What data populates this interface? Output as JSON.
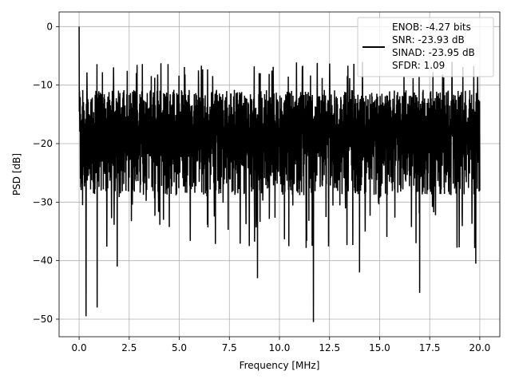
{
  "chart_data": {
    "type": "line",
    "xlabel": "Frequency [MHz]",
    "ylabel": "PSD [dB]",
    "xlim": [
      -1.0,
      21.0
    ],
    "ylim": [
      -53.0,
      2.5
    ],
    "xticks": [
      0.0,
      2.5,
      5.0,
      7.5,
      10.0,
      12.5,
      15.0,
      17.5,
      20.0
    ],
    "xtick_labels": [
      "0.0",
      "2.5",
      "5.0",
      "7.5",
      "10.0",
      "12.5",
      "15.0",
      "17.5",
      "20.0"
    ],
    "yticks": [
      0,
      -10,
      -20,
      -30,
      -40,
      -50
    ],
    "ytick_labels": [
      "0",
      "−10",
      "−20",
      "−30",
      "−40",
      "−50"
    ],
    "grid": true,
    "legend_position": "top-right",
    "line_color": "#000000",
    "series": [
      {
        "legend_lines": [
          "ENOB: -4.27 bits",
          "SNR: -23.93 dB",
          "SINAD: -23.95 dB",
          "SFDR: 1.09"
        ],
        "x_range": [
          0.0,
          20.0
        ],
        "peak": {
          "x": 0.0,
          "y": 0.0
        },
        "typical_upper": -9,
        "typical_lower": -27,
        "deep_dips": [
          {
            "x": 0.35,
            "y": -49.5
          },
          {
            "x": 0.9,
            "y": -48.0
          },
          {
            "x": 11.7,
            "y": -50.5
          },
          {
            "x": 17.0,
            "y": -45.5
          },
          {
            "x": 8.9,
            "y": -43.0
          },
          {
            "x": 14.0,
            "y": -42.0
          },
          {
            "x": 19.8,
            "y": -40.5
          },
          {
            "x": 1.9,
            "y": -41.0
          }
        ]
      }
    ]
  }
}
